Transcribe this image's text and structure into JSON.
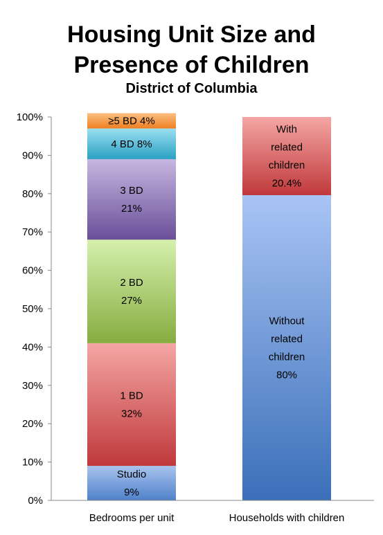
{
  "chart_data": {
    "type": "bar",
    "stacked": true,
    "percent": true,
    "title": "Housing Unit Size and\nPresence of Children",
    "subtitle": "District of Columbia",
    "ylim": [
      0,
      100
    ],
    "yticks": [
      "0%",
      "10%",
      "20%",
      "30%",
      "40%",
      "50%",
      "60%",
      "70%",
      "80%",
      "90%",
      "100%"
    ],
    "grid": false,
    "categories": [
      "Bedrooms per unit",
      "Households with children"
    ],
    "bars": [
      {
        "category": "Bedrooms per unit",
        "segments": [
          {
            "label": [
              "Studio",
              "9%"
            ],
            "value": 9,
            "color_top": "#a9c4ef",
            "color_bottom": "#4f81c9"
          },
          {
            "label": [
              "1 BD",
              "32%"
            ],
            "value": 32,
            "color_top": "#f4a6a4",
            "color_bottom": "#c0393b"
          },
          {
            "label": [
              "2 BD",
              "27%"
            ],
            "value": 27,
            "color_top": "#d6f0ad",
            "color_bottom": "#86ac3f"
          },
          {
            "label": [
              "3 BD",
              "21%"
            ],
            "value": 21,
            "color_top": "#c6b6e0",
            "color_bottom": "#6a4f99"
          },
          {
            "label": [
              "4 BD 8%"
            ],
            "value": 8,
            "color_top": "#9bdff0",
            "color_bottom": "#2aa0c4"
          },
          {
            "label": [
              "≥5 BD 4%"
            ],
            "value": 4,
            "color_top": "#fbbf82",
            "color_bottom": "#ef7f21"
          }
        ]
      },
      {
        "category": "Households with children",
        "segments": [
          {
            "label": [
              "Without",
              "related",
              "children",
              "80%"
            ],
            "value": 79.6,
            "color_top": "#a9c4f5",
            "color_bottom": "#3a6fb8"
          },
          {
            "label": [
              "With",
              "related",
              "children",
              "20.4%"
            ],
            "value": 20.4,
            "color_top": "#f4a6a4",
            "color_bottom": "#c0393b"
          }
        ]
      }
    ]
  }
}
